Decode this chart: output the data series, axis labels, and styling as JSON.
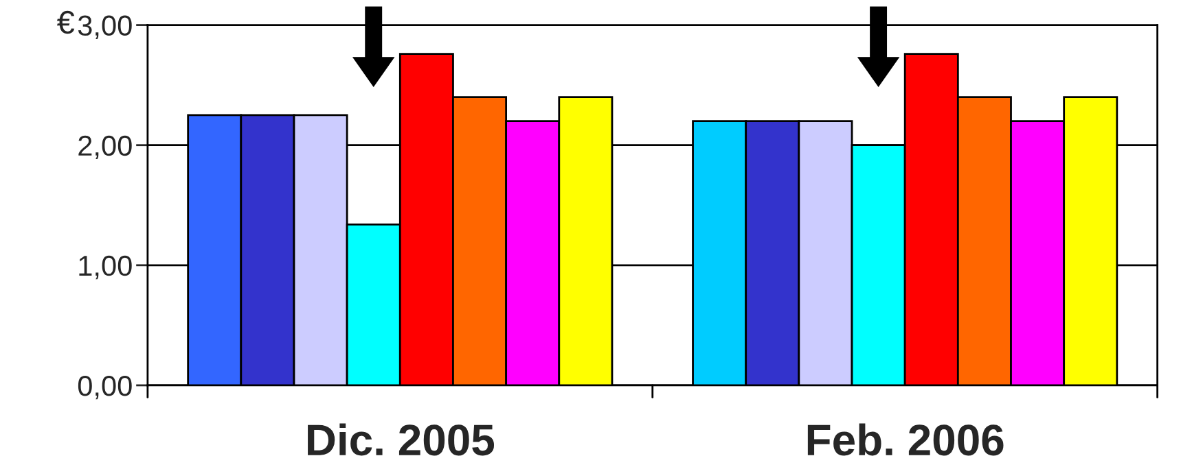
{
  "chart_data": {
    "type": "bar",
    "ylabel": "€",
    "categories": [
      "Dic. 2005",
      "Feb. 2006"
    ],
    "series": [
      {
        "colors": [
          "#3366ff",
          "#00ccff"
        ],
        "values": [
          2.25,
          2.2
        ]
      },
      {
        "color": "#3333cc",
        "values": [
          2.25,
          2.2
        ]
      },
      {
        "color": "#ccccff",
        "values": [
          2.25,
          2.2
        ]
      },
      {
        "color": "#00ffff",
        "values": [
          1.34,
          2.0
        ]
      },
      {
        "color": "#ff0000",
        "values": [
          2.76,
          2.76
        ]
      },
      {
        "color": "#ff6600",
        "values": [
          2.4,
          2.4
        ]
      },
      {
        "color": "#ff00ff",
        "values": [
          2.2,
          2.2
        ]
      },
      {
        "color": "#ffff00",
        "values": [
          2.4,
          2.4
        ]
      }
    ],
    "ylim": [
      0,
      3
    ],
    "yticks": [
      {
        "value": 0,
        "label": "0,00"
      },
      {
        "value": 1,
        "label": "1,00"
      },
      {
        "value": 2,
        "label": "2,00"
      },
      {
        "value": 3,
        "label": "3,00"
      }
    ],
    "grid": "y",
    "legend": false
  }
}
